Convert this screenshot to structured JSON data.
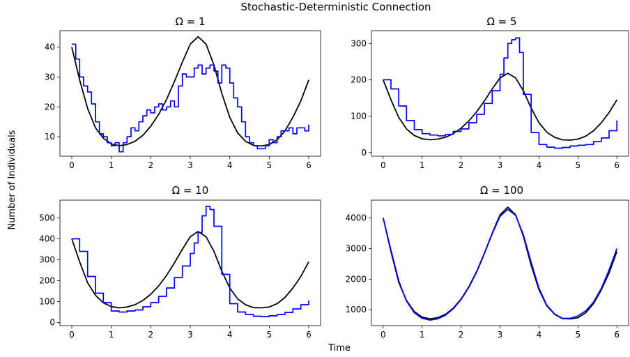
{
  "figure": {
    "suptitle": "Stochastic-Deterministic Connection",
    "xlabel": "Time",
    "ylabel": "Number of Individuals"
  },
  "colors": {
    "stochastic": "#0000ff",
    "deterministic": "#000000"
  },
  "chart_data": [
    {
      "type": "line",
      "title": "Ω = 1",
      "xlim": [
        -0.3,
        6.3
      ],
      "ylim": [
        3.5,
        45.5
      ],
      "xticks": [
        0,
        1,
        2,
        3,
        4,
        5,
        6
      ],
      "yticks": [
        10,
        20,
        30,
        40
      ],
      "series": [
        {
          "color": "#000000",
          "style": "smooth",
          "x": [
            0,
            0.2,
            0.4,
            0.6,
            0.8,
            1.0,
            1.2,
            1.4,
            1.6,
            1.8,
            2.0,
            2.2,
            2.4,
            2.6,
            2.8,
            3.0,
            3.2,
            3.4,
            3.6,
            3.8,
            4.0,
            4.2,
            4.4,
            4.6,
            4.8,
            5.0,
            5.2,
            5.4,
            5.6,
            5.8,
            6.0
          ],
          "y": [
            40,
            29,
            19.5,
            13,
            9.5,
            7.6,
            7,
            7.4,
            8.5,
            10.5,
            13.5,
            17.5,
            22.5,
            28.5,
            35,
            41,
            43.5,
            41,
            34,
            24.5,
            16.5,
            11.3,
            8.5,
            7.1,
            6.9,
            7.4,
            9,
            12,
            16.5,
            22,
            29
          ]
        },
        {
          "color": "#0000ff",
          "style": "step",
          "x": [
            0,
            0.1,
            0.2,
            0.3,
            0.4,
            0.5,
            0.6,
            0.7,
            0.8,
            0.9,
            1.0,
            1.1,
            1.2,
            1.3,
            1.4,
            1.5,
            1.6,
            1.7,
            1.8,
            1.9,
            2.0,
            2.1,
            2.2,
            2.3,
            2.4,
            2.5,
            2.6,
            2.7,
            2.8,
            2.9,
            3.0,
            3.1,
            3.2,
            3.3,
            3.4,
            3.5,
            3.6,
            3.7,
            3.8,
            3.9,
            4.0,
            4.1,
            4.2,
            4.3,
            4.4,
            4.5,
            4.6,
            4.7,
            4.8,
            4.9,
            5.0,
            5.1,
            5.2,
            5.3,
            5.4,
            5.5,
            5.6,
            5.7,
            5.8,
            5.9,
            6.0
          ],
          "y": [
            41,
            36,
            30,
            27,
            25,
            21,
            15,
            11,
            10,
            8,
            7,
            8,
            5,
            8,
            10,
            13,
            12,
            15,
            17,
            19,
            18,
            20,
            21,
            19,
            20,
            22,
            20,
            27,
            31,
            30,
            30,
            33,
            34,
            31,
            33,
            34,
            32,
            28,
            34,
            33,
            28,
            23,
            20,
            15,
            10,
            8,
            7,
            6,
            6,
            7,
            9,
            8,
            10,
            12,
            12,
            13,
            11,
            13,
            13,
            12,
            14
          ]
        }
      ]
    },
    {
      "type": "line",
      "title": "Ω = 5",
      "xlim": [
        -0.3,
        6.3
      ],
      "ylim": [
        -10,
        335
      ],
      "xticks": [
        0,
        1,
        2,
        3,
        4,
        5,
        6
      ],
      "yticks": [
        0,
        100,
        200,
        300
      ],
      "series": [
        {
          "color": "#000000",
          "style": "smooth",
          "x": [
            0,
            0.2,
            0.4,
            0.6,
            0.8,
            1.0,
            1.2,
            1.4,
            1.6,
            1.8,
            2.0,
            2.2,
            2.4,
            2.6,
            2.8,
            3.0,
            3.2,
            3.4,
            3.6,
            3.8,
            4.0,
            4.2,
            4.4,
            4.6,
            4.8,
            5.0,
            5.2,
            5.4,
            5.6,
            5.8,
            6.0
          ],
          "y": [
            200,
            145,
            97,
            65,
            47,
            38,
            35,
            37,
            42,
            52,
            67,
            87,
            112,
            142,
            175,
            205,
            218,
            205,
            170,
            122,
            82,
            56,
            42,
            35,
            34,
            37,
            45,
            60,
            82,
            110,
            145
          ]
        },
        {
          "color": "#0000ff",
          "style": "step",
          "x": [
            0,
            0.2,
            0.4,
            0.6,
            0.8,
            1.0,
            1.2,
            1.4,
            1.6,
            1.8,
            2.0,
            2.2,
            2.4,
            2.6,
            2.8,
            3.0,
            3.1,
            3.2,
            3.3,
            3.4,
            3.5,
            3.6,
            3.8,
            4.0,
            4.2,
            4.4,
            4.6,
            4.8,
            5.0,
            5.2,
            5.4,
            5.6,
            5.8,
            6.0
          ],
          "y": [
            200,
            175,
            128,
            88,
            63,
            52,
            48,
            46,
            50,
            58,
            65,
            82,
            105,
            135,
            170,
            215,
            260,
            300,
            310,
            315,
            275,
            160,
            55,
            22,
            15,
            12,
            14,
            18,
            20,
            22,
            30,
            40,
            60,
            88
          ]
        }
      ]
    },
    {
      "type": "line",
      "title": "Ω = 10",
      "xlim": [
        -0.3,
        6.3
      ],
      "ylim": [
        -15,
        585
      ],
      "xticks": [
        0,
        1,
        2,
        3,
        4,
        5,
        6
      ],
      "yticks": [
        0,
        100,
        200,
        300,
        400,
        500
      ],
      "series": [
        {
          "color": "#000000",
          "style": "smooth",
          "x": [
            0,
            0.2,
            0.4,
            0.6,
            0.8,
            1.0,
            1.2,
            1.4,
            1.6,
            1.8,
            2.0,
            2.2,
            2.4,
            2.6,
            2.8,
            3.0,
            3.2,
            3.4,
            3.6,
            3.8,
            4.0,
            4.2,
            4.4,
            4.6,
            4.8,
            5.0,
            5.2,
            5.4,
            5.6,
            5.8,
            6.0
          ],
          "y": [
            400,
            290,
            190,
            130,
            94,
            76,
            70,
            74,
            85,
            105,
            135,
            175,
            225,
            285,
            350,
            410,
            435,
            410,
            340,
            245,
            165,
            113,
            85,
            71,
            70,
            74,
            90,
            120,
            165,
            220,
            290
          ]
        },
        {
          "color": "#0000ff",
          "style": "step",
          "x": [
            0,
            0.2,
            0.4,
            0.6,
            0.8,
            1.0,
            1.2,
            1.4,
            1.6,
            1.8,
            2.0,
            2.2,
            2.4,
            2.6,
            2.8,
            3.0,
            3.1,
            3.2,
            3.3,
            3.4,
            3.5,
            3.6,
            3.8,
            4.0,
            4.2,
            4.4,
            4.6,
            4.8,
            5.0,
            5.2,
            5.4,
            5.6,
            5.8,
            6.0
          ],
          "y": [
            400,
            340,
            220,
            140,
            95,
            55,
            50,
            55,
            60,
            75,
            95,
            125,
            165,
            215,
            270,
            330,
            380,
            430,
            510,
            555,
            540,
            460,
            230,
            90,
            50,
            38,
            30,
            28,
            32,
            38,
            48,
            65,
            85,
            105
          ]
        }
      ]
    },
    {
      "type": "line",
      "title": "Ω = 100",
      "xlim": [
        -0.3,
        6.3
      ],
      "ylim": [
        480,
        4580
      ],
      "xticks": [
        0,
        1,
        2,
        3,
        4,
        5,
        6
      ],
      "yticks": [
        1000,
        2000,
        3000,
        4000
      ],
      "series": [
        {
          "color": "#000000",
          "style": "smooth",
          "x": [
            0,
            0.2,
            0.4,
            0.6,
            0.8,
            1.0,
            1.2,
            1.4,
            1.6,
            1.8,
            2.0,
            2.2,
            2.4,
            2.6,
            2.8,
            3.0,
            3.2,
            3.4,
            3.6,
            3.8,
            4.0,
            4.2,
            4.4,
            4.6,
            4.8,
            5.0,
            5.2,
            5.4,
            5.6,
            5.8,
            6.0
          ],
          "y": [
            4000,
            2900,
            1900,
            1300,
            940,
            760,
            700,
            740,
            850,
            1050,
            1350,
            1750,
            2250,
            2850,
            3500,
            4100,
            4350,
            4100,
            3400,
            2450,
            1650,
            1130,
            850,
            710,
            700,
            740,
            900,
            1200,
            1650,
            2200,
            2900
          ]
        },
        {
          "color": "#0000ff",
          "style": "smooth",
          "x": [
            0,
            0.2,
            0.4,
            0.6,
            0.8,
            1.0,
            1.2,
            1.4,
            1.6,
            1.8,
            2.0,
            2.2,
            2.4,
            2.6,
            2.8,
            3.0,
            3.2,
            3.4,
            3.6,
            3.8,
            4.0,
            4.2,
            4.4,
            4.6,
            4.8,
            5.0,
            5.2,
            5.4,
            5.6,
            5.8,
            6.0
          ],
          "y": [
            4000,
            2950,
            1950,
            1280,
            900,
            720,
            660,
            700,
            820,
            1030,
            1330,
            1730,
            2230,
            2830,
            3480,
            4050,
            4280,
            4080,
            3450,
            2550,
            1700,
            1150,
            860,
            720,
            720,
            800,
            960,
            1250,
            1700,
            2300,
            3000
          ]
        }
      ]
    }
  ]
}
